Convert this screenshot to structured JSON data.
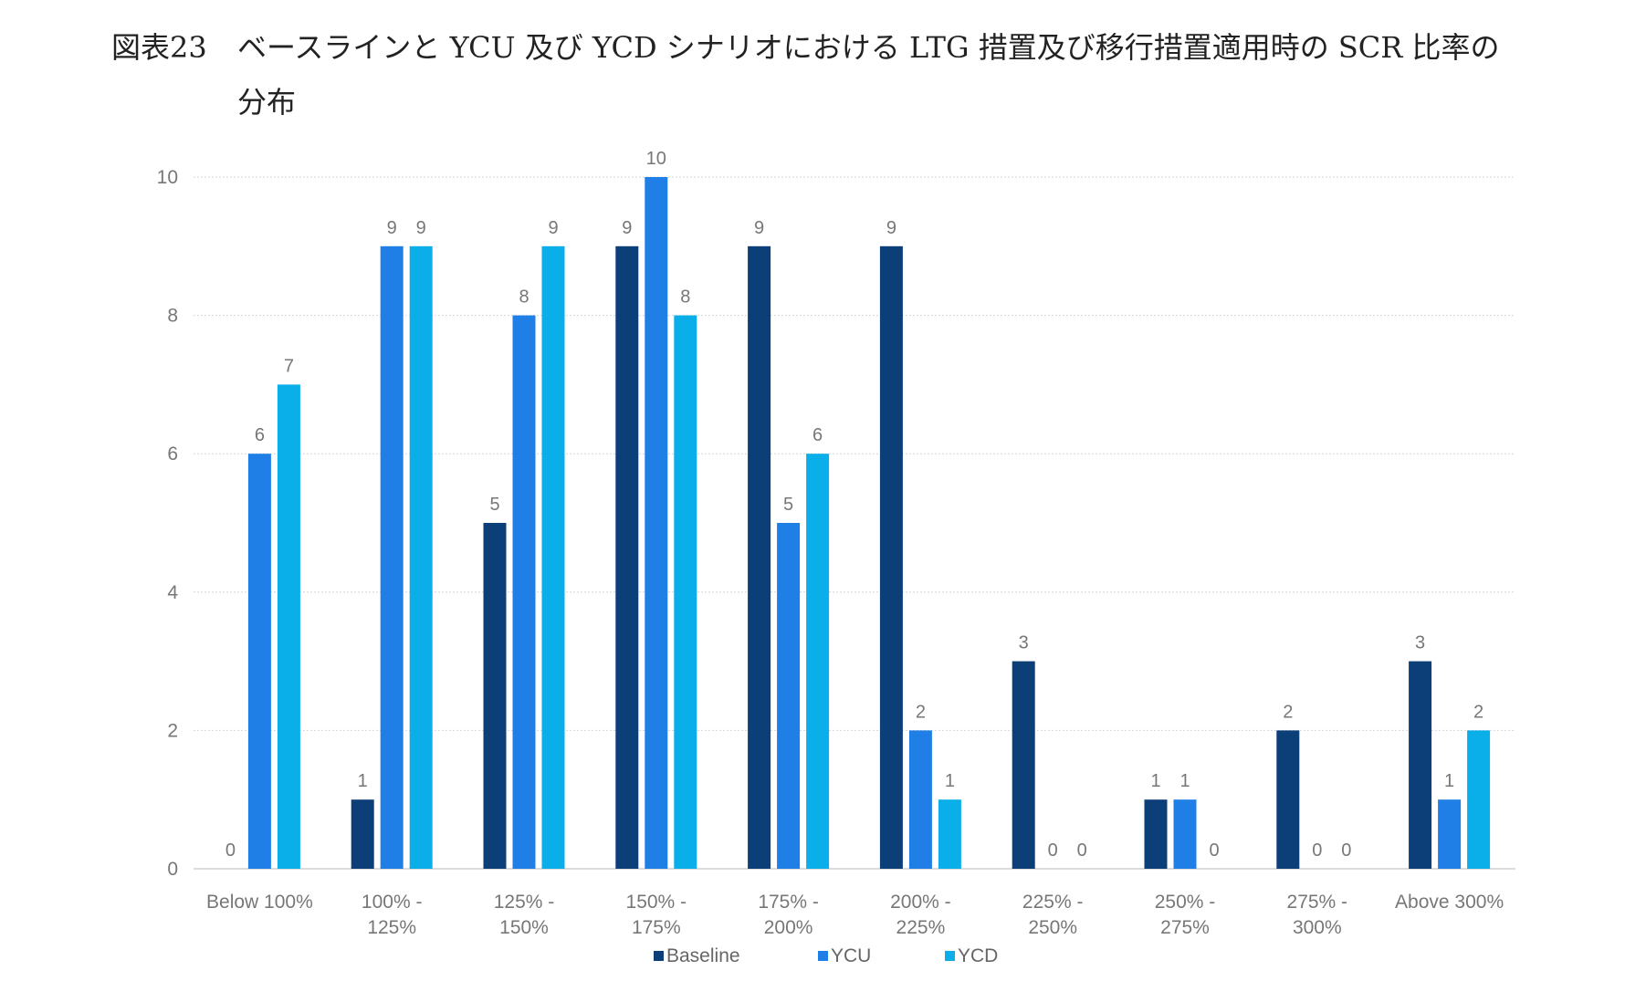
{
  "title": {
    "label": "図表23",
    "text_line1": "ベースラインと YCU 及び YCD シナリオにおける LTG 措置及び移行措置適用時の SCR 比率の",
    "text_line2": "分布"
  },
  "colors": {
    "Baseline": "#0c3e78",
    "YCU": "#1f7fe6",
    "YCD": "#0aaee8",
    "grid": "#d6d6d6",
    "axis": "#cfcfcf"
  },
  "chart_data": {
    "type": "bar",
    "categories": [
      [
        "Below 100%"
      ],
      [
        "100% -",
        "125%"
      ],
      [
        "125% -",
        "150%"
      ],
      [
        "150% -",
        "175%"
      ],
      [
        "175% -",
        "200%"
      ],
      [
        "200% -",
        "225%"
      ],
      [
        "225% -",
        "250%"
      ],
      [
        "250% -",
        "275%"
      ],
      [
        "275% -",
        "300%"
      ],
      [
        "Above 300%"
      ]
    ],
    "series": [
      {
        "name": "Baseline",
        "values": [
          0,
          1,
          5,
          9,
          9,
          9,
          3,
          1,
          2,
          3
        ]
      },
      {
        "name": "YCU",
        "values": [
          6,
          9,
          8,
          10,
          5,
          2,
          0,
          1,
          0,
          1
        ]
      },
      {
        "name": "YCD",
        "values": [
          7,
          9,
          9,
          8,
          6,
          1,
          0,
          0,
          0,
          2
        ]
      }
    ],
    "ylim": [
      0,
      10
    ],
    "yticks": [
      0,
      2,
      4,
      6,
      8,
      10
    ],
    "grid": true,
    "legend": "bottom-center",
    "data_labels": true
  }
}
